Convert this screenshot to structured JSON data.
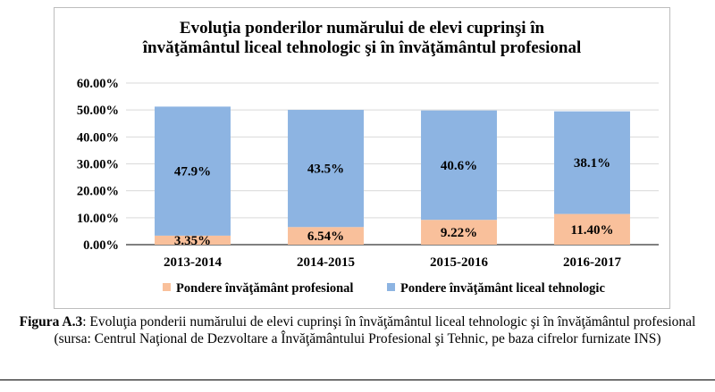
{
  "chart_data": {
    "type": "bar",
    "stacked": true,
    "title_line1": "Evoluţia ponderilor numărului de elevi cuprinşi în",
    "title_line2": "învăţământul liceal tehnologic şi în învăţământul profesional",
    "categories": [
      "2013-2014",
      "2014-2015",
      "2015-2016",
      "2016-2017"
    ],
    "series": [
      {
        "name": "Pondere învăţământ profesional",
        "values": [
          3.35,
          6.54,
          9.22,
          11.4
        ],
        "labels": [
          "3.35%",
          "6.54%",
          "9.22%",
          "11.40%"
        ],
        "color": "#f9c09b"
      },
      {
        "name": "Pondere învăţământ liceal tehnologic",
        "values": [
          47.9,
          43.5,
          40.6,
          38.1
        ],
        "labels": [
          "47.9%",
          "43.5%",
          "40.6%",
          "38.1%"
        ],
        "color": "#8db4e2"
      }
    ],
    "y_ticks": [
      "0.00%",
      "10.00%",
      "20.00%",
      "30.00%",
      "40.00%",
      "50.00%",
      "60.00%"
    ],
    "ylim": [
      0,
      60
    ],
    "grid": true,
    "legend_position": "bottom"
  },
  "caption": {
    "figure_label": "Figura A.3",
    "text": ": Evoluţia ponderii numărului de elevi cuprinşi în învăţământul liceal tehnologic şi în învăţământul profesional (sursa: Centrul Naţional de Dezvoltare a Învăţământului Profesional şi Tehnic, pe baza cifrelor furnizate INS)"
  }
}
